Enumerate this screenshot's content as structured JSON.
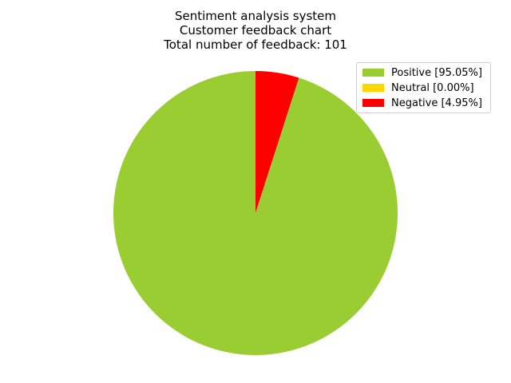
{
  "chart_data": {
    "type": "pie",
    "title_lines": [
      "Sentiment analysis system",
      "Customer feedback chart",
      "Total number of feedback: 101"
    ],
    "slices": [
      {
        "name": "Positive",
        "percent": 95.05,
        "color": "#9acd32",
        "legend_label": "Positive [95.05%]"
      },
      {
        "name": "Neutral",
        "percent": 0.0,
        "color": "#ffd700",
        "legend_label": "Neutral [0.00%]"
      },
      {
        "name": "Negative",
        "percent": 4.95,
        "color": "#ff0000",
        "legend_label": "Negative [4.95%]"
      }
    ],
    "legend_position": "top-right"
  }
}
